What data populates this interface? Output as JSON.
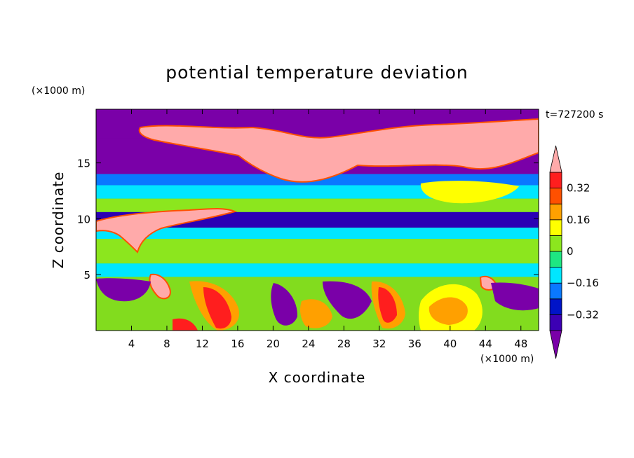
{
  "chart_data": {
    "type": "heatmap",
    "title": "potential temperature deviation",
    "xlabel": "X coordinate",
    "ylabel": "Z coordinate",
    "x_unit": "(×1000 m)",
    "y_unit": "(×1000 m)",
    "time_label": "t=727200 s",
    "xlim": [
      0,
      50
    ],
    "ylim": [
      0,
      19.8
    ],
    "x_ticks": [
      4,
      8,
      12,
      16,
      20,
      24,
      28,
      32,
      36,
      40,
      44,
      48
    ],
    "y_ticks": [
      5,
      10,
      15
    ],
    "colorbar": {
      "levels": [
        -0.4,
        -0.32,
        -0.24,
        -0.16,
        -0.08,
        0,
        0.08,
        0.16,
        0.24,
        0.32,
        0.4
      ],
      "labels": [
        "0.32",
        "0.16",
        "0",
        "−0.16",
        "−0.32"
      ],
      "label_values": [
        0.32,
        0.16,
        0,
        -0.16,
        -0.32
      ],
      "colors": [
        "#7a00a8",
        "#3c00b4",
        "#0014c8",
        "#0a78ff",
        "#00e6ff",
        "#1ee682",
        "#8ce61e",
        "#ffff00",
        "#ffa000",
        "#ff5000",
        "#ff1e1e",
        "#ffaaaa"
      ],
      "extend": "both"
    },
    "background_colors": {
      "mid": "#32e650",
      "bottom": "#82dc1e"
    },
    "bands": [
      {
        "z": [
          17.2,
          19.8
        ],
        "level": "purple-layer",
        "color": "#7a00a8"
      },
      {
        "z": [
          14.0,
          17.2
        ],
        "level": "purple-band",
        "color": "#7a00a8"
      },
      {
        "z": [
          13.0,
          14.0
        ],
        "level": "blue-band",
        "color": "#0a78ff"
      },
      {
        "z": [
          11.8,
          13.0
        ],
        "level": "cyan-band",
        "color": "#00e6ff"
      },
      {
        "z": [
          10.6,
          11.8
        ],
        "level": "green-band",
        "color": "#8ce61e"
      },
      {
        "z": [
          9.2,
          10.6
        ],
        "level": "navy-band",
        "color": "#2b00b4"
      },
      {
        "z": [
          8.2,
          9.2
        ],
        "level": "cyan-band",
        "color": "#00e6ff"
      },
      {
        "z": [
          6.0,
          8.2
        ],
        "level": "green-band",
        "color": "#8ce61e"
      },
      {
        "z": [
          4.8,
          6.0
        ],
        "level": "cyan-band",
        "color": "#00e6ff"
      }
    ]
  }
}
